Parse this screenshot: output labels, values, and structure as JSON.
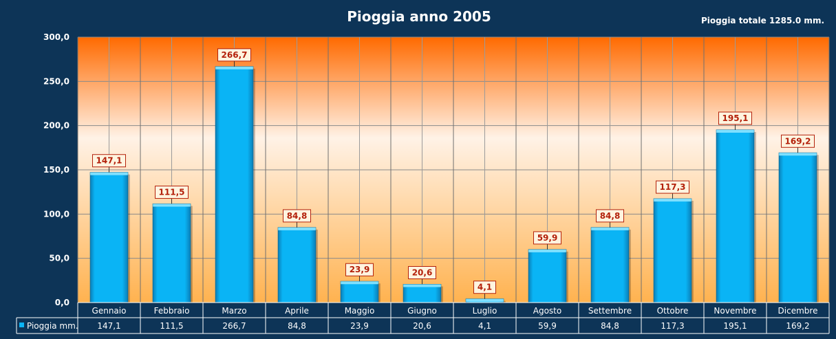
{
  "colors": {
    "background": "#0d3457",
    "bar_fill": "#0ab4f5",
    "data_label_text": "#b3200a",
    "gradient_top": "#ff6a00",
    "gradient_mid": "#fff2e6",
    "gradient_bottom": "#ffb24f"
  },
  "chart_data": {
    "type": "bar",
    "title": "Pioggia anno 2005",
    "subtitle": "Pioggia totale 1285.0 mm.",
    "categories": [
      "Gennaio",
      "Febbraio",
      "Marzo",
      "Aprile",
      "Maggio",
      "Giugno",
      "Luglio",
      "Agosto",
      "Settembre",
      "Ottobre",
      "Novembre",
      "Dicembre"
    ],
    "series": [
      {
        "name": "Pioggia mm.",
        "values": [
          147.1,
          111.5,
          266.7,
          84.8,
          23.9,
          20.6,
          4.1,
          59.9,
          84.8,
          117.3,
          195.1,
          169.2
        ],
        "labels": [
          "147,1",
          "111,5",
          "266,7",
          "84,8",
          "23,9",
          "20,6",
          "4,1",
          "59,9",
          "84,8",
          "117,3",
          "195,1",
          "169,2"
        ]
      }
    ],
    "ylim": [
      0,
      300
    ],
    "yticks": [
      "0,0",
      "50,0",
      "100,0",
      "150,0",
      "200,0",
      "250,0",
      "300,0"
    ],
    "xlabel": "",
    "ylabel": "",
    "grid": true,
    "legend": "data-table"
  }
}
